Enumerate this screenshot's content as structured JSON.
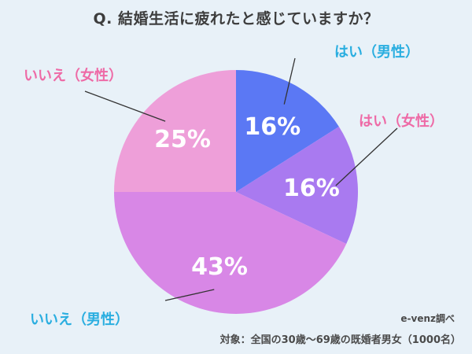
{
  "title": "Q. 結婚生活に疲れたと感じていますか？",
  "source": "e-venz調べ",
  "target_text": "対象：全国の30歳〜69歳の既婚者男女（1000名）",
  "chart_data": {
    "type": "pie",
    "title": "Q. 結婚生活に疲れたと感じていますか？",
    "slices": [
      {
        "label": "はい（男性）",
        "value": 16,
        "value_label": "16%",
        "color": "#5b78f4",
        "label_color": "#2aaee0"
      },
      {
        "label": "はい（女性）",
        "value": 16,
        "value_label": "16%",
        "color": "#a97af0",
        "label_color": "#ee6aa6"
      },
      {
        "label": "いいえ（男性）",
        "value": 43,
        "value_label": "43%",
        "color": "#d887e6",
        "label_color": "#2aaee0"
      },
      {
        "label": "いいえ（女性）",
        "value": 25,
        "value_label": "25%",
        "color": "#ee9fd9",
        "label_color": "#ee6aa6"
      }
    ]
  }
}
